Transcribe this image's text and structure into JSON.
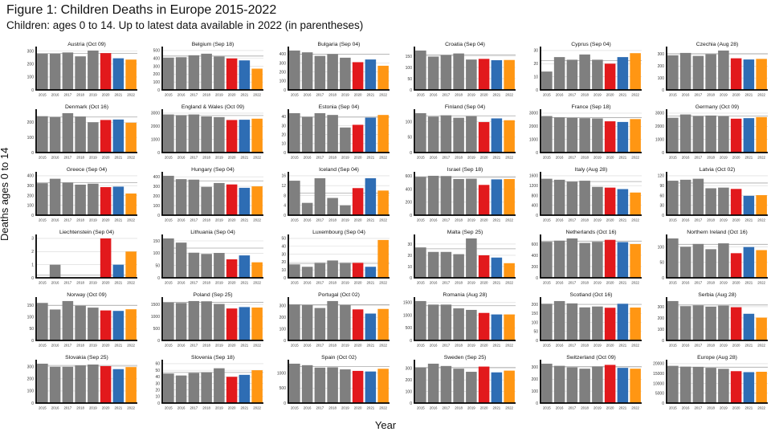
{
  "header": {
    "title": "Figure 1: Children Deaths in Europe 2015-2022",
    "subtitle": "Children: ages 0 to 14. Up to latest data available in 2022 (in parentheses)"
  },
  "chart_data": {
    "type": "bar",
    "title": "Figure 1: Children Deaths in Europe 2015-2022",
    "subtitle": "Children: ages 0 to 14. Up to latest data available in 2022 (in parentheses)",
    "xlabel": "Year",
    "ylabel": "Deaths ages 0 to 14",
    "categories": [
      "2015",
      "2016",
      "2017",
      "2018",
      "2019",
      "2020",
      "2021",
      "2022"
    ],
    "year_colors": [
      "#7f7f7f",
      "#7f7f7f",
      "#7f7f7f",
      "#7f7f7f",
      "#7f7f7f",
      "#e2191c",
      "#2e6db4",
      "#ff9613"
    ],
    "style_colors": {
      "grid": "#d8d8d8",
      "ref_line": "#a8a8a8",
      "axis": "#000000",
      "tick_text": "#3a3a3a"
    },
    "ref_line_meaning": "average of 2015-2019",
    "legend_position": "none",
    "grid": true,
    "panels": [
      {
        "label": "Austria (Oct 09)",
        "yticks": [
          0,
          100,
          200,
          300
        ],
        "values": [
          280,
          280,
          290,
          260,
          305,
          285,
          245,
          235
        ]
      },
      {
        "label": "Belgium (Sep 18)",
        "yticks": [
          0,
          100,
          200,
          300,
          400,
          500
        ],
        "values": [
          410,
          415,
          440,
          460,
          425,
          400,
          375,
          270
        ]
      },
      {
        "label": "Bulgaria (Sep 04)",
        "yticks": [
          0,
          100,
          200,
          300,
          400
        ],
        "values": [
          440,
          420,
          380,
          400,
          360,
          310,
          340,
          270
        ]
      },
      {
        "label": "Croatia (Sep 04)",
        "yticks": [
          0,
          50,
          100,
          150
        ],
        "values": [
          175,
          148,
          155,
          162,
          135,
          138,
          132,
          133
        ]
      },
      {
        "label": "Cyprus (Sep 04)",
        "yticks": [
          0,
          10,
          20,
          30
        ],
        "values": [
          14,
          25,
          23,
          27,
          23,
          20,
          25,
          28
        ]
      },
      {
        "label": "Czechia (Aug 28)",
        "yticks": [
          0,
          100,
          200,
          300
        ],
        "values": [
          290,
          310,
          285,
          300,
          330,
          265,
          255,
          260
        ]
      },
      {
        "label": "Denmark (Oct 16)",
        "yticks": [
          0,
          100,
          200
        ],
        "values": [
          240,
          235,
          260,
          238,
          200,
          215,
          218,
          197
        ]
      },
      {
        "label": "England & Wales (Oct 09)",
        "yticks": [
          0,
          1000,
          2000,
          3000
        ],
        "values": [
          2900,
          2850,
          2900,
          2750,
          2700,
          2480,
          2500,
          2580
        ]
      },
      {
        "label": "Estonia (Sep 04)",
        "yticks": [
          0,
          10,
          20,
          30,
          40
        ],
        "values": [
          44,
          40,
          44,
          42,
          28,
          31,
          39,
          42
        ]
      },
      {
        "label": "Finland (Sep 04)",
        "yticks": [
          0,
          50,
          100
        ],
        "values": [
          128,
          117,
          121,
          113,
          118,
          99,
          111,
          105
        ]
      },
      {
        "label": "France (Sep 18)",
        "yticks": [
          0,
          1000,
          2000,
          3000
        ],
        "values": [
          2780,
          2680,
          2640,
          2620,
          2600,
          2380,
          2330,
          2550
        ]
      },
      {
        "label": "Germany (Oct 09)",
        "yticks": [
          0,
          1000,
          2000,
          3000
        ],
        "values": [
          2650,
          2900,
          2780,
          2820,
          2770,
          2580,
          2620,
          2700
        ]
      },
      {
        "label": "Greece (Sep 04)",
        "yticks": [
          0,
          100,
          200,
          300,
          400
        ],
        "values": [
          325,
          370,
          330,
          310,
          320,
          285,
          290,
          220
        ]
      },
      {
        "label": "Hungary (Sep 04)",
        "yticks": [
          0,
          100,
          200,
          300,
          400
        ],
        "values": [
          410,
          375,
          370,
          295,
          335,
          320,
          285,
          300
        ]
      },
      {
        "label": "Iceland (Sep 04)",
        "yticks": [
          0,
          4,
          8,
          12,
          16
        ],
        "values": [
          14,
          5,
          15,
          7,
          4,
          11,
          15,
          10
        ]
      },
      {
        "label": "Israel (Sep 18)",
        "yticks": [
          0,
          200,
          400,
          600
        ],
        "values": [
          590,
          605,
          600,
          555,
          560,
          465,
          550,
          555
        ]
      },
      {
        "label": "Italy (Aug 28)",
        "yticks": [
          0,
          400,
          800,
          1200,
          1600
        ],
        "values": [
          1480,
          1440,
          1360,
          1400,
          1150,
          1120,
          1060,
          920
        ]
      },
      {
        "label": "Latvia (Oct 02)",
        "yticks": [
          0,
          30,
          60,
          90,
          120
        ],
        "values": [
          105,
          108,
          111,
          82,
          84,
          80,
          59,
          61
        ]
      },
      {
        "label": "Liechtenstein (Sep 04)",
        "yticks": [
          0,
          1,
          2,
          3
        ],
        "values": [
          0,
          1,
          0,
          0,
          0,
          3,
          1,
          2
        ]
      },
      {
        "label": "Lithuania (Sep 04)",
        "yticks": [
          0,
          50,
          100,
          150
        ],
        "values": [
          160,
          143,
          102,
          97,
          101,
          75,
          91,
          63
        ]
      },
      {
        "label": "Luxembourg (Sep 04)",
        "yticks": [
          0,
          10,
          20,
          30,
          40,
          50
        ],
        "values": [
          17,
          14,
          19,
          22,
          19,
          19,
          14,
          48
        ]
      },
      {
        "label": "Malta (Sep 25)",
        "yticks": [
          0,
          10,
          20,
          30
        ],
        "values": [
          27,
          23,
          23,
          21,
          35,
          20,
          18,
          13
        ]
      },
      {
        "label": "Netherlands (Oct 16)",
        "yticks": [
          0,
          200,
          400,
          600
        ],
        "values": [
          640,
          660,
          700,
          620,
          640,
          675,
          635,
          600
        ]
      },
      {
        "label": "Northern Ireland (Oct 16)",
        "yticks": [
          0,
          50,
          100
        ],
        "values": [
          128,
          101,
          110,
          93,
          112,
          80,
          100,
          90
        ]
      },
      {
        "label": "Norway (Oct 09)",
        "yticks": [
          0,
          50,
          100,
          150
        ],
        "values": [
          160,
          132,
          168,
          148,
          140,
          128,
          126,
          133
        ]
      },
      {
        "label": "Poland (Sep 25)",
        "yticks": [
          0,
          500,
          1000,
          1500
        ],
        "values": [
          1580,
          1560,
          1640,
          1630,
          1520,
          1330,
          1390,
          1370
        ]
      },
      {
        "label": "Portugal (Oct 02)",
        "yticks": [
          0,
          100,
          200,
          300
        ],
        "values": [
          310,
          305,
          280,
          340,
          305,
          268,
          232,
          272
        ]
      },
      {
        "label": "Romania (Aug 28)",
        "yticks": [
          0,
          500,
          1000,
          1500
        ],
        "values": [
          1560,
          1420,
          1420,
          1270,
          1210,
          1090,
          1030,
          1030
        ]
      },
      {
        "label": "Scotland (Oct 16)",
        "yticks": [
          0,
          50,
          100,
          150,
          200
        ],
        "values": [
          203,
          218,
          205,
          183,
          188,
          181,
          203,
          182
        ]
      },
      {
        "label": "Serbia (Aug 28)",
        "yticks": [
          0,
          100,
          200,
          300
        ],
        "values": [
          350,
          305,
          312,
          300,
          310,
          295,
          237,
          203
        ]
      },
      {
        "label": "Slovakia (Sep 25)",
        "yticks": [
          0,
          100,
          200,
          300
        ],
        "values": [
          325,
          300,
          300,
          310,
          318,
          305,
          280,
          297
        ]
      },
      {
        "label": "Slovenia (Sep 18)",
        "yticks": [
          0,
          10,
          20,
          30,
          40,
          50,
          60
        ],
        "values": [
          45,
          42,
          46,
          47,
          53,
          40,
          43,
          50
        ]
      },
      {
        "label": "Spain (Oct 02)",
        "yticks": [
          0,
          500,
          1000
        ],
        "values": [
          1310,
          1260,
          1180,
          1190,
          1120,
          1070,
          1050,
          1140
        ]
      },
      {
        "label": "Sweden (Sep 25)",
        "yticks": [
          0,
          100,
          200,
          300
        ],
        "values": [
          307,
          340,
          320,
          297,
          270,
          315,
          265,
          280
        ]
      },
      {
        "label": "Switzerland (Oct 09)",
        "yticks": [
          0,
          100,
          200,
          300
        ],
        "values": [
          330,
          312,
          300,
          288,
          305,
          320,
          295,
          288
        ]
      },
      {
        "label": "Europe (Aug 28)",
        "yticks": [
          0,
          5000,
          10000,
          15000,
          20000
        ],
        "values": [
          18900,
          18500,
          18400,
          17900,
          17400,
          16200,
          15700,
          15900
        ]
      }
    ]
  }
}
